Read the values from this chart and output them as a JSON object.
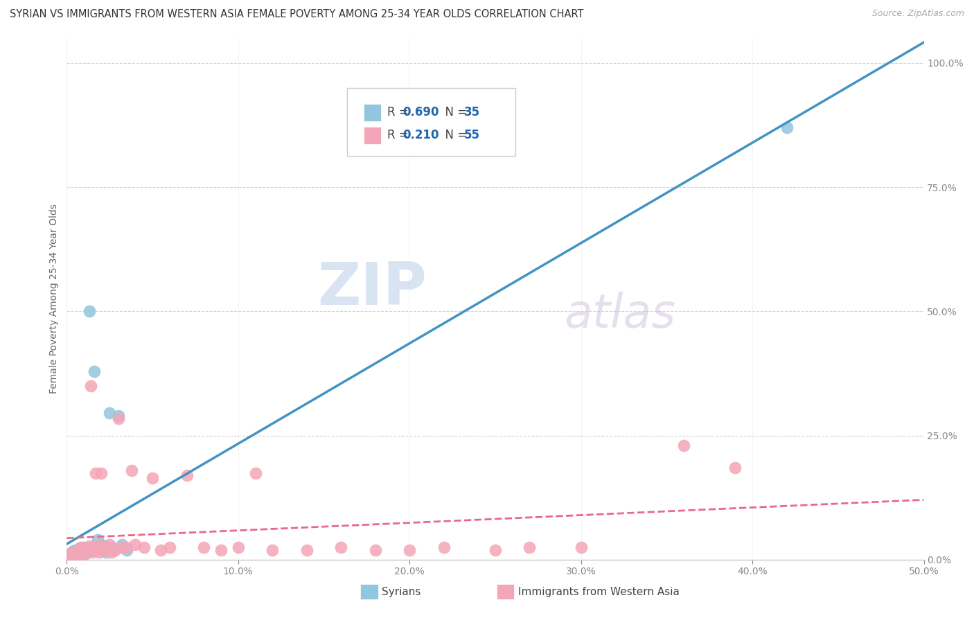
{
  "title": "SYRIAN VS IMMIGRANTS FROM WESTERN ASIA FEMALE POVERTY AMONG 25-34 YEAR OLDS CORRELATION CHART",
  "source": "Source: ZipAtlas.com",
  "ylabel_label": "Female Poverty Among 25-34 Year Olds",
  "legend_blue_r": "R = 0.690",
  "legend_blue_n": "N = 35",
  "legend_pink_r": "R = 0.210",
  "legend_pink_n": "N = 55",
  "legend_label_blue": "Syrians",
  "legend_label_pink": "Immigrants from Western Asia",
  "blue_color": "#92c5de",
  "pink_color": "#f4a6b8",
  "blue_line_color": "#4393c3",
  "pink_line_color": "#e8688a",
  "watermark_zip": "ZIP",
  "watermark_atlas": "atlas",
  "background": "#ffffff",
  "blue_x": [
    0.001,
    0.002,
    0.002,
    0.003,
    0.003,
    0.004,
    0.004,
    0.005,
    0.005,
    0.006,
    0.006,
    0.007,
    0.007,
    0.008,
    0.008,
    0.009,
    0.01,
    0.01,
    0.011,
    0.012,
    0.013,
    0.015,
    0.016,
    0.02,
    0.022,
    0.025,
    0.027,
    0.03,
    0.032,
    0.035,
    0.018,
    0.021,
    0.023,
    0.026,
    0.42
  ],
  "blue_y": [
    0.005,
    0.008,
    0.012,
    0.006,
    0.015,
    0.01,
    0.018,
    0.007,
    0.02,
    0.008,
    0.015,
    0.012,
    0.022,
    0.01,
    0.018,
    0.015,
    0.01,
    0.025,
    0.02,
    0.015,
    0.5,
    0.025,
    0.38,
    0.03,
    0.028,
    0.295,
    0.022,
    0.29,
    0.03,
    0.02,
    0.04,
    0.02,
    0.015,
    0.025,
    0.87
  ],
  "pink_x": [
    0.001,
    0.002,
    0.003,
    0.004,
    0.005,
    0.006,
    0.006,
    0.007,
    0.007,
    0.008,
    0.008,
    0.009,
    0.01,
    0.01,
    0.011,
    0.012,
    0.013,
    0.014,
    0.015,
    0.015,
    0.016,
    0.017,
    0.018,
    0.019,
    0.02,
    0.022,
    0.023,
    0.025,
    0.026,
    0.028,
    0.03,
    0.032,
    0.035,
    0.038,
    0.04,
    0.045,
    0.05,
    0.055,
    0.06,
    0.07,
    0.08,
    0.09,
    0.1,
    0.11,
    0.12,
    0.14,
    0.16,
    0.18,
    0.2,
    0.22,
    0.25,
    0.27,
    0.3,
    0.36,
    0.39
  ],
  "pink_y": [
    0.008,
    0.012,
    0.006,
    0.015,
    0.01,
    0.018,
    0.008,
    0.012,
    0.02,
    0.015,
    0.025,
    0.01,
    0.018,
    0.022,
    0.015,
    0.02,
    0.028,
    0.35,
    0.015,
    0.025,
    0.02,
    0.175,
    0.03,
    0.015,
    0.175,
    0.025,
    0.02,
    0.03,
    0.015,
    0.02,
    0.285,
    0.025,
    0.025,
    0.18,
    0.03,
    0.025,
    0.165,
    0.02,
    0.025,
    0.17,
    0.025,
    0.02,
    0.025,
    0.175,
    0.02,
    0.02,
    0.025,
    0.02,
    0.02,
    0.025,
    0.02,
    0.025,
    0.025,
    0.23,
    0.185
  ]
}
